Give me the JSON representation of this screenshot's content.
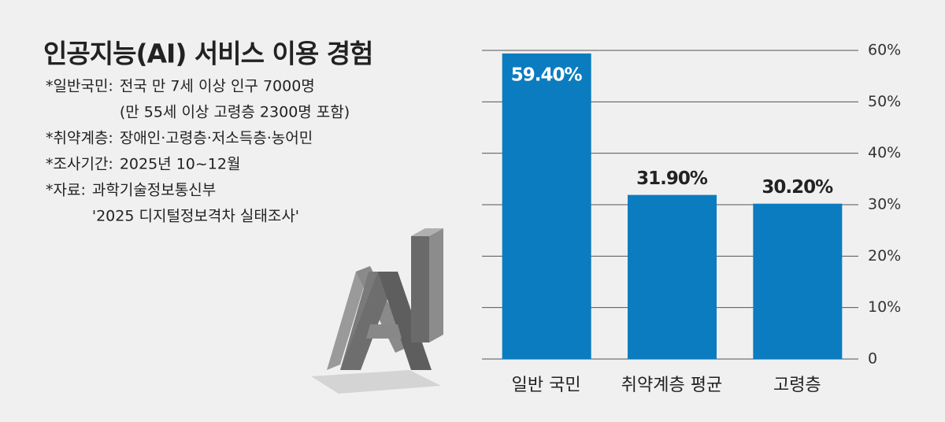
{
  "chart_data": {
    "type": "bar",
    "title": "인공지능(AI) 서비스 이용 경험",
    "notes": [
      {
        "label": "*일반국민:",
        "lines": [
          "전국 만 7세 이상 인구 7000명",
          "(만 55세 이상 고령층 2300명 포함)"
        ]
      },
      {
        "label": "*취약계층:",
        "lines": [
          "장애인·고령층·저소득층·농어민"
        ]
      },
      {
        "label": "*조사기간:",
        "lines": [
          "2025년 10~12월"
        ]
      },
      {
        "label": "*자료:",
        "lines": [
          "과학기술정보통신부",
          "'2025 디지털정보격차 실태조사'"
        ]
      }
    ],
    "categories": [
      "일반 국민",
      "취약계층 평균",
      "고령층"
    ],
    "values": [
      59.4,
      31.9,
      30.2
    ],
    "value_labels": [
      "59.40%",
      "31.90%",
      "30.20%"
    ],
    "color": "#0b7cbf",
    "ylim": [
      0,
      60
    ],
    "yticks": [
      0,
      {
        "value": 10,
        "label": "10%"
      },
      {
        "value": 20,
        "label": "20%"
      },
      {
        "value": 30,
        "label": "30%"
      },
      {
        "value": 40,
        "label": "40%"
      },
      {
        "value": 50,
        "label": "50%"
      },
      {
        "value": 60,
        "label": "60%"
      }
    ],
    "grid": true
  }
}
